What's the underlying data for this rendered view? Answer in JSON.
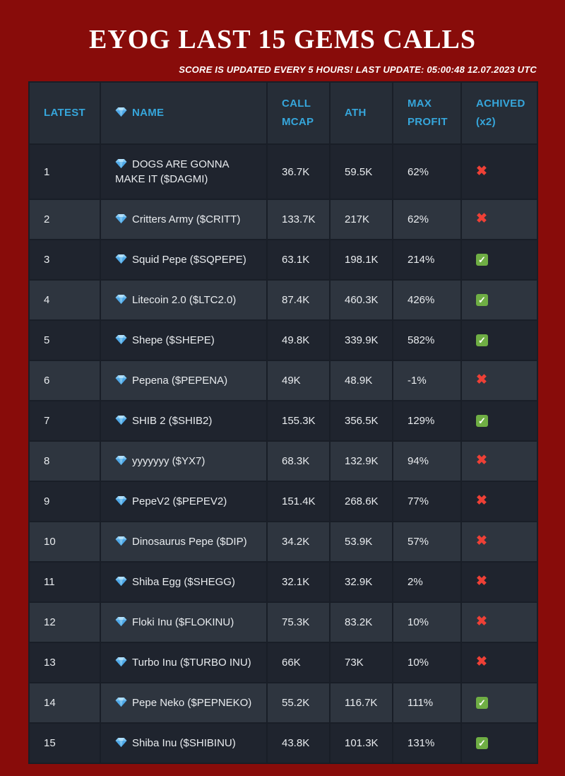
{
  "chart_data": {
    "type": "table",
    "title": "EYOG LAST 15 GEMS CALLS",
    "subtitle": "SCORE IS UPDATED EVERY 5 HOURS! LAST UPDATE: 05:00:48 12.07.2023 UTC",
    "columns": [
      "LATEST",
      "NAME",
      "CALL MCAP",
      "ATH",
      "MAX PROFIT",
      "ACHIVED (x2)"
    ],
    "rows": [
      {
        "latest": "1",
        "name": "DOGS ARE GONNA MAKE IT ($DAGMI)",
        "call_mcap": "36.7K",
        "ath": "59.5K",
        "max_profit": "62%",
        "achieved": false
      },
      {
        "latest": "2",
        "name": "Critters Army ($CRITT)",
        "call_mcap": "133.7K",
        "ath": "217K",
        "max_profit": "62%",
        "achieved": false
      },
      {
        "latest": "3",
        "name": "Squid Pepe ($SQPEPE)",
        "call_mcap": "63.1K",
        "ath": "198.1K",
        "max_profit": "214%",
        "achieved": true
      },
      {
        "latest": "4",
        "name": "Litecoin 2.0 ($LTC2.0)",
        "call_mcap": "87.4K",
        "ath": "460.3K",
        "max_profit": "426%",
        "achieved": true
      },
      {
        "latest": "5",
        "name": "Shepe ($SHEPE)",
        "call_mcap": "49.8K",
        "ath": "339.9K",
        "max_profit": "582%",
        "achieved": true
      },
      {
        "latest": "6",
        "name": "Pepena ($PEPENA)",
        "call_mcap": "49K",
        "ath": "48.9K",
        "max_profit": "-1%",
        "achieved": false
      },
      {
        "latest": "7",
        "name": "SHIB 2 ($SHIB2)",
        "call_mcap": "155.3K",
        "ath": "356.5K",
        "max_profit": "129%",
        "achieved": true
      },
      {
        "latest": "8",
        "name": "yyyyyyy ($YX7)",
        "call_mcap": "68.3K",
        "ath": "132.9K",
        "max_profit": "94%",
        "achieved": false
      },
      {
        "latest": "9",
        "name": "PepeV2 ($PEPEV2)",
        "call_mcap": "151.4K",
        "ath": "268.6K",
        "max_profit": "77%",
        "achieved": false
      },
      {
        "latest": "10",
        "name": "Dinosaurus Pepe ($DIP)",
        "call_mcap": "34.2K",
        "ath": "53.9K",
        "max_profit": "57%",
        "achieved": false
      },
      {
        "latest": "11",
        "name": "Shiba Egg ($SHEGG)",
        "call_mcap": "32.1K",
        "ath": "32.9K",
        "max_profit": "2%",
        "achieved": false
      },
      {
        "latest": "12",
        "name": "Floki Inu ($FLOKINU)",
        "call_mcap": "75.3K",
        "ath": "83.2K",
        "max_profit": "10%",
        "achieved": false
      },
      {
        "latest": "13",
        "name": "Turbo Inu ($TURBO INU)",
        "call_mcap": "66K",
        "ath": "73K",
        "max_profit": "10%",
        "achieved": false
      },
      {
        "latest": "14",
        "name": "Pepe Neko ($PEPNEKO)",
        "call_mcap": "55.2K",
        "ath": "116.7K",
        "max_profit": "111%",
        "achieved": true
      },
      {
        "latest": "15",
        "name": "Shiba Inu ($SHIBINU)",
        "call_mcap": "43.8K",
        "ath": "101.3K",
        "max_profit": "131%",
        "achieved": true
      }
    ],
    "legend_position": "none",
    "grid": "cell-borders"
  },
  "icons": {
    "name_column": "gem-icon",
    "achieved_true": "check-icon",
    "achieved_false": "cross-icon"
  },
  "colors": {
    "page_background": "#880C0A",
    "header_text": "#36A6DB",
    "header_background": "#262D37",
    "row_odd": "#1F242E",
    "row_even": "#2E353F",
    "cell_border": "#191E27",
    "body_text": "#E9ECEF",
    "check_green": "#6FAE44",
    "cross_red": "#EE4036"
  }
}
